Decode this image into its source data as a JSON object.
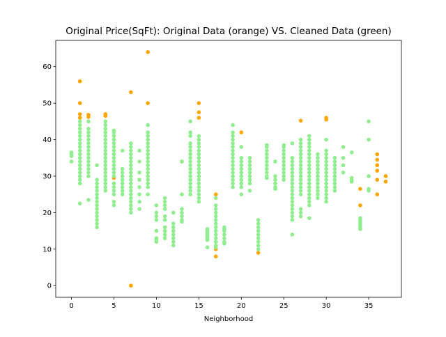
{
  "chart_data": {
    "type": "scatter",
    "title": "Original Price(SqFt): Original Data (orange) VS. Cleaned Data (green)",
    "xlabel": "Neighborhood",
    "ylabel": "",
    "xlim": [
      -1.85,
      38.85
    ],
    "ylim": [
      -3.2,
      67.2
    ],
    "xticks": [
      0,
      5,
      10,
      15,
      20,
      25,
      30,
      35
    ],
    "yticks": [
      0,
      10,
      20,
      30,
      40,
      50,
      60
    ],
    "grid": false,
    "legend": "none",
    "colors": {
      "original": "#ffa500",
      "cleaned": "#90ee90"
    },
    "series": [
      {
        "points": [
          [
            1,
            56
          ],
          [
            1,
            50
          ],
          [
            1,
            47
          ],
          [
            1,
            46
          ],
          [
            2,
            46.8
          ],
          [
            2,
            46.2
          ],
          [
            4,
            47
          ],
          [
            4,
            46.5
          ],
          [
            5,
            29.5
          ],
          [
            7,
            53
          ],
          [
            7,
            0
          ],
          [
            9,
            64
          ],
          [
            9,
            50
          ],
          [
            13,
            34
          ],
          [
            15,
            50
          ],
          [
            15,
            47.5
          ],
          [
            15,
            46
          ],
          [
            17,
            25
          ],
          [
            17,
            10
          ],
          [
            17,
            8
          ],
          [
            20,
            42
          ],
          [
            22,
            9
          ],
          [
            27,
            45.2
          ],
          [
            30,
            46
          ],
          [
            30,
            45.5
          ],
          [
            34,
            26.5
          ],
          [
            34,
            22
          ],
          [
            36,
            36
          ],
          [
            36,
            34.5
          ],
          [
            36,
            33
          ],
          [
            36,
            31.5
          ],
          [
            36,
            29
          ],
          [
            36,
            25
          ],
          [
            37,
            30
          ],
          [
            37,
            28.5
          ]
        ]
      },
      {
        "columns": [
          {
            "x": 0,
            "values": [
              36.5,
              36,
              35.5,
              34
            ]
          },
          {
            "x": 1,
            "values": [
              45,
              44,
              43,
              42,
              41,
              40,
              39,
              38,
              37,
              36,
              35,
              34,
              33,
              32,
              31,
              30,
              29,
              28,
              22.5
            ]
          },
          {
            "x": 2,
            "values": [
              45,
              43,
              42,
              41,
              40,
              39,
              38,
              37,
              36,
              35,
              34,
              33,
              32,
              31,
              30,
              23.5
            ]
          },
          {
            "x": 3,
            "values": [
              33,
              29,
              28,
              27,
              26,
              25,
              24,
              23,
              22,
              21,
              20,
              19,
              18,
              17,
              16
            ]
          },
          {
            "x": 4,
            "values": [
              45,
              44,
              43,
              42,
              41,
              40,
              39,
              38,
              37,
              36,
              35,
              34,
              33,
              32,
              31,
              30,
              29,
              28,
              27,
              26
            ]
          },
          {
            "x": 5,
            "values": [
              42.5,
              42,
              41,
              40,
              39,
              38,
              37,
              36,
              35,
              34,
              33,
              32,
              31,
              30,
              28,
              27,
              26,
              25,
              23,
              22
            ]
          },
          {
            "x": 6,
            "values": [
              37,
              32,
              31,
              30,
              29,
              28,
              27,
              26,
              25
            ]
          },
          {
            "x": 7,
            "values": [
              39,
              38,
              37,
              36,
              35,
              34,
              33,
              32,
              31,
              30,
              29,
              28,
              27,
              26,
              25,
              24,
              23,
              22,
              21,
              20
            ]
          },
          {
            "x": 8,
            "values": [
              37,
              34,
              31,
              29,
              27,
              25,
              23,
              21
            ]
          },
          {
            "x": 9,
            "values": [
              44,
              42,
              41,
              40,
              39,
              38,
              37,
              36,
              35,
              34,
              33,
              32,
              31,
              30,
              29,
              28,
              27,
              25
            ]
          },
          {
            "x": 10,
            "values": [
              22,
              20,
              19,
              18,
              15,
              13,
              12.5,
              12
            ]
          },
          {
            "x": 11,
            "values": [
              24,
              23,
              22,
              21,
              19,
              18,
              16,
              15,
              14,
              13
            ]
          },
          {
            "x": 12,
            "values": [
              20,
              17,
              16,
              15,
              14,
              13,
              12,
              11
            ]
          },
          {
            "x": 13,
            "values": [
              34,
              25,
              21,
              20,
              19,
              18,
              17.5
            ]
          },
          {
            "x": 14,
            "values": [
              45,
              42,
              41,
              39,
              38,
              37,
              36,
              35,
              34,
              33,
              32,
              31,
              30,
              29,
              28,
              27,
              26,
              25
            ]
          },
          {
            "x": 15,
            "values": [
              41,
              40,
              39,
              38,
              37,
              36,
              35,
              34,
              33,
              32,
              31,
              30,
              29,
              28,
              27,
              26,
              25,
              24,
              23
            ]
          },
          {
            "x": 16,
            "values": [
              15.5,
              15,
              14.5,
              14,
              13.5,
              13,
              12.5,
              10.5
            ]
          },
          {
            "x": 17,
            "values": [
              24,
              22,
              21,
              20,
              19,
              18,
              17,
              16,
              15,
              14,
              13,
              12,
              11,
              10.5
            ]
          },
          {
            "x": 18,
            "values": [
              16,
              15.5,
              15,
              14,
              13,
              12,
              11.5
            ]
          },
          {
            "x": 19,
            "values": [
              44,
              42,
              41,
              40,
              39,
              38,
              37,
              36,
              35,
              34,
              33,
              32,
              31,
              30,
              29,
              28,
              27
            ]
          },
          {
            "x": 20,
            "values": [
              38,
              35,
              34,
              33,
              32,
              31,
              30,
              29,
              28,
              27,
              25
            ]
          },
          {
            "x": 21,
            "values": [
              35,
              34,
              33,
              32,
              31,
              30,
              29,
              28,
              26
            ]
          },
          {
            "x": 22,
            "values": [
              18,
              17,
              16,
              15,
              14,
              13,
              12,
              11,
              10
            ]
          },
          {
            "x": 23,
            "values": [
              38.5,
              38,
              37,
              36,
              35,
              34,
              33,
              32,
              31,
              30,
              29.5
            ]
          },
          {
            "x": 24,
            "values": [
              34,
              30,
              29,
              28,
              27,
              26.5
            ]
          },
          {
            "x": 25,
            "values": [
              38.5,
              38,
              37,
              36,
              35,
              34,
              33,
              32,
              31,
              30,
              29
            ]
          },
          {
            "x": 26,
            "values": [
              39,
              35,
              34,
              33,
              32,
              31,
              30,
              29,
              28,
              27,
              26,
              25,
              24,
              23,
              22,
              21,
              20,
              19,
              18,
              14
            ]
          },
          {
            "x": 27,
            "values": [
              40,
              39,
              38,
              37,
              36,
              35,
              34,
              33,
              32,
              31,
              30,
              29,
              28,
              27,
              26,
              25,
              21,
              20,
              19
            ]
          },
          {
            "x": 28,
            "values": [
              41,
              40,
              39,
              38,
              37,
              36,
              35,
              34,
              33,
              32,
              31,
              30,
              29,
              28,
              27,
              26,
              25,
              24,
              23,
              22,
              18.5
            ]
          },
          {
            "x": 29,
            "values": [
              36,
              35,
              34,
              33,
              32,
              31,
              30,
              29,
              28,
              27,
              26,
              25,
              24
            ]
          },
          {
            "x": 30,
            "values": [
              40,
              37,
              36,
              35,
              34,
              33,
              32,
              31,
              30,
              29,
              28,
              27,
              26,
              25,
              24,
              23
            ]
          },
          {
            "x": 31,
            "values": [
              35,
              34,
              33,
              32,
              31,
              30,
              29,
              28,
              27,
              26
            ]
          },
          {
            "x": 32,
            "values": [
              38,
              35,
              33,
              31
            ]
          },
          {
            "x": 33,
            "values": [
              36.5,
              29.5,
              29,
              28.5
            ]
          },
          {
            "x": 34,
            "values": [
              18.5,
              18,
              17.5,
              17,
              16.5,
              16,
              15.5
            ]
          },
          {
            "x": 35,
            "values": [
              45,
              40,
              30,
              26.5,
              26
            ]
          }
        ]
      }
    ]
  }
}
